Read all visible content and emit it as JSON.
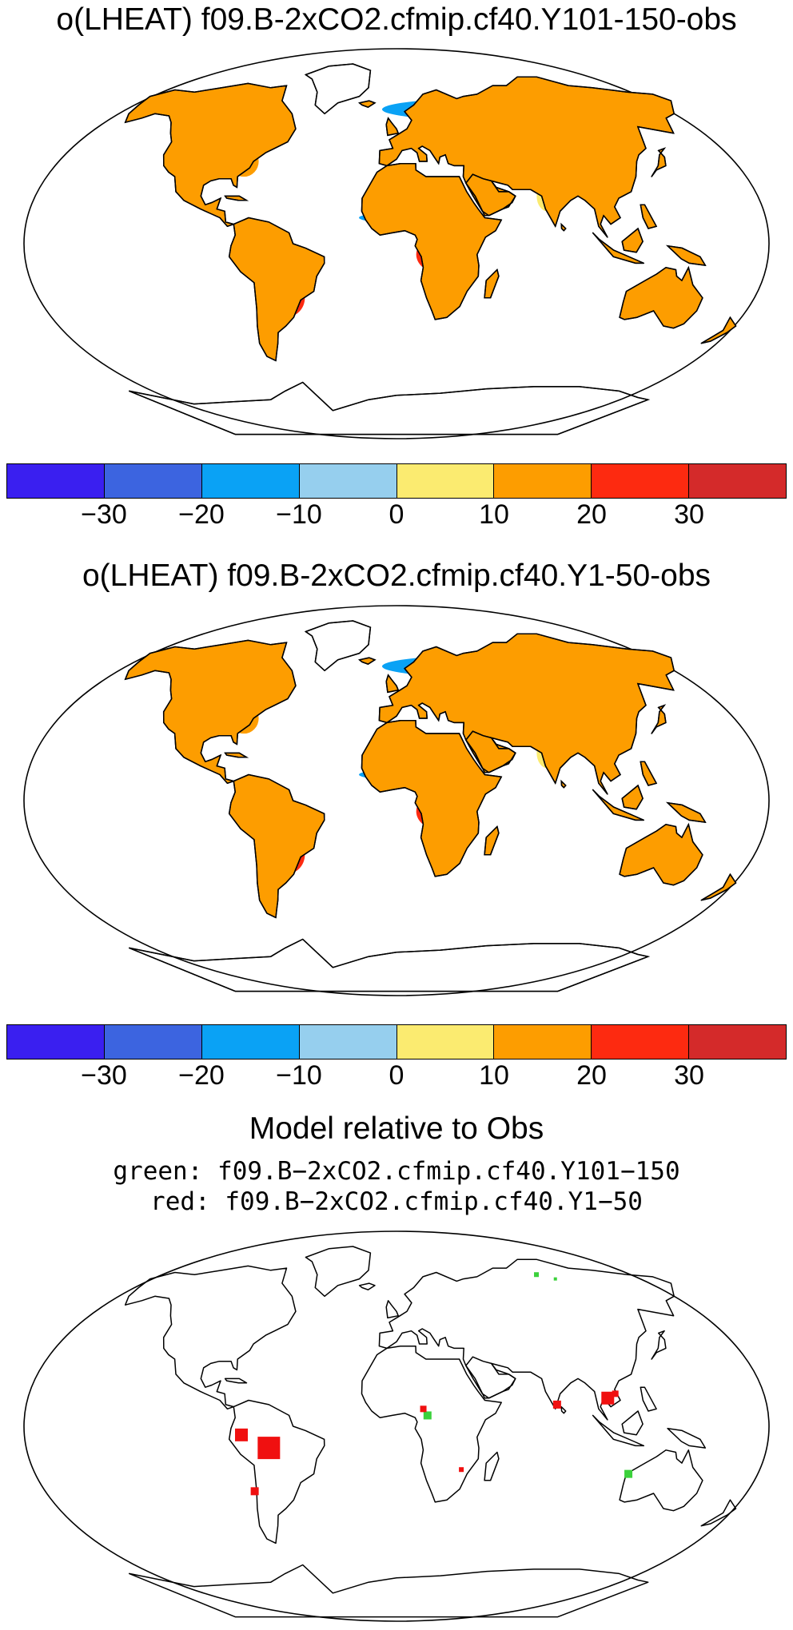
{
  "panel1": {
    "title": "o(LHEAT) f09.B-2xCO2.cfmip.cf40.Y101-150-obs"
  },
  "panel2": {
    "title": "o(LHEAT) f09.B-2xCO2.cfmip.cf40.Y1-50-obs"
  },
  "panel3": {
    "title": "Model relative to Obs",
    "legend_green": "green: f09.B−2xCO2.cfmip.cf40.Y101−150",
    "legend_red": "red: f09.B−2xCO2.cfmip.cf40.Y1−50"
  },
  "colorbar": {
    "colors": [
      "#3a1ff0",
      "#3c64e0",
      "#0aa2f5",
      "#96cfee",
      "#fbeb70",
      "#fd9d00",
      "#fd2a10",
      "#d42a2a"
    ],
    "labels": [
      "−30",
      "−20",
      "−10",
      "0",
      "10",
      "20",
      "30"
    ]
  },
  "map_legend_colors": {
    "green": "#3bd13b",
    "red": "#f01010"
  }
}
